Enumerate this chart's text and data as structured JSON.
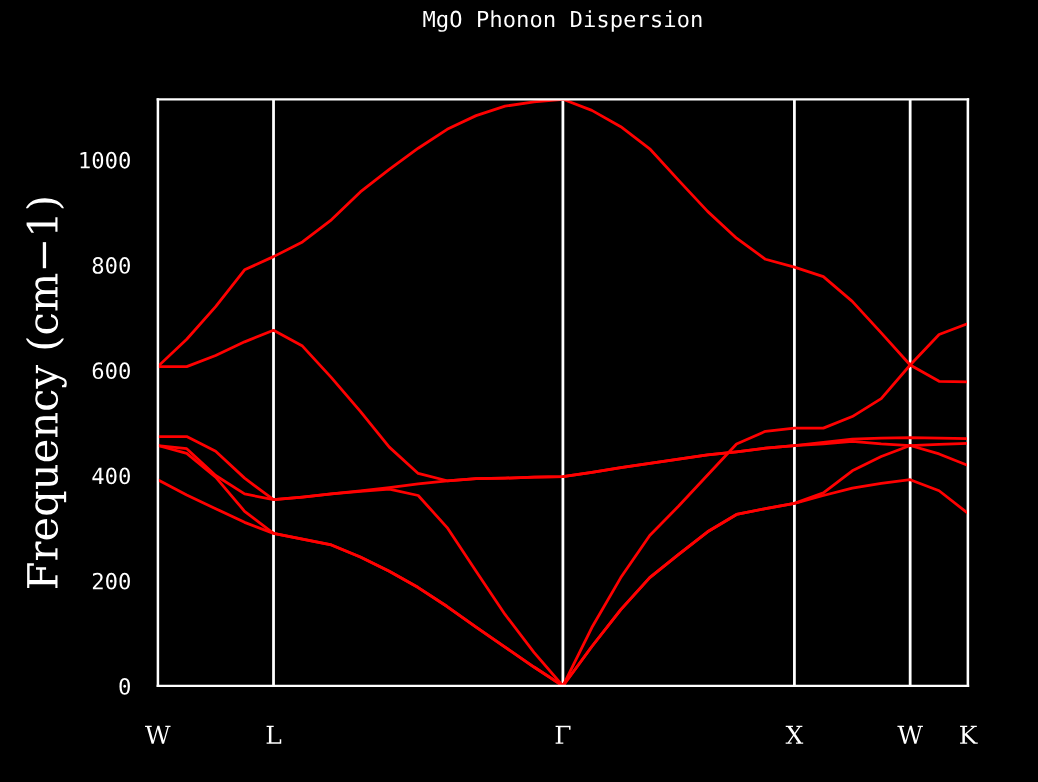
{
  "chart_data": {
    "type": "line",
    "title": "MgO Phonon Dispersion",
    "ylabel": "Frequency (cm−1)",
    "categories": [
      "W",
      null,
      null,
      null,
      "L",
      null,
      null,
      null,
      null,
      null,
      null,
      null,
      null,
      null,
      "Γ",
      null,
      null,
      null,
      null,
      null,
      null,
      null,
      "X",
      null,
      null,
      null,
      "W",
      null,
      "K"
    ],
    "ylim": [
      0,
      1115
    ],
    "yticks": [
      0,
      200,
      400,
      600,
      800,
      1000
    ],
    "grid": "x",
    "marker": "none",
    "line_style": "solid",
    "series": [
      {
        "color": "#ff0000",
        "values": [
          607,
          659,
          721,
          791,
          816,
          844,
          886,
          939,
          982,
          1022,
          1058,
          1084,
          1102,
          1110,
          1115,
          1094,
          1063,
          1021,
          961,
          902,
          851,
          811,
          796,
          778,
          731,
          671,
          610,
          579,
          578
        ]
      },
      {
        "color": "#ff0000",
        "values": [
          607,
          607,
          628,
          654,
          676,
          646,
          586,
          522,
          454,
          404,
          390,
          394,
          395,
          397,
          398,
          406,
          415,
          423,
          431,
          439,
          445,
          452,
          457,
          463,
          469,
          471,
          472,
          471,
          470
        ]
      },
      {
        "color": "#ff0000",
        "values": [
          474,
          474,
          446,
          395,
          354,
          359,
          365,
          370,
          374,
          362,
          301,
          218,
          136,
          64,
          0,
          111,
          206,
          286,
          342,
          401,
          460,
          484,
          490,
          490,
          512,
          546,
          610,
          668,
          689
        ]
      },
      {
        "color": "#ff0000",
        "values": [
          457,
          451,
          400,
          365,
          354,
          359,
          365,
          371,
          377,
          384,
          390,
          394,
          395,
          397,
          398,
          406,
          415,
          423,
          431,
          439,
          445,
          452,
          457,
          460,
          465,
          460,
          457,
          459,
          461
        ]
      },
      {
        "color": "#ff0000",
        "values": [
          457,
          442,
          397,
          332,
          290,
          279,
          268,
          245,
          218,
          187,
          151,
          112,
          74,
          36,
          0,
          75,
          145,
          206,
          250,
          293,
          326,
          337,
          347,
          367,
          409,
          436,
          457,
          441,
          419
        ]
      },
      {
        "color": "#ff0000",
        "values": [
          392,
          363,
          337,
          311,
          290,
          279,
          268,
          245,
          218,
          187,
          151,
          112,
          74,
          36,
          0,
          75,
          145,
          206,
          250,
          293,
          326,
          337,
          347,
          362,
          376,
          385,
          392,
          371,
          328
        ]
      }
    ]
  }
}
